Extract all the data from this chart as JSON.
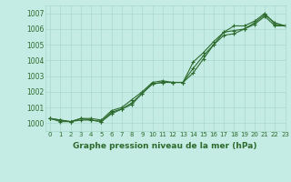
{
  "title": "Graphe pression niveau de la mer (hPa)",
  "background_color": "#c5ece4",
  "grid_color": "#a8d8cc",
  "line_color": "#2d6a2d",
  "xlim": [
    -0.5,
    23
  ],
  "ylim": [
    999.5,
    1007.5
  ],
  "yticks": [
    1000,
    1001,
    1002,
    1003,
    1004,
    1005,
    1006,
    1007
  ],
  "xticks": [
    0,
    1,
    2,
    3,
    4,
    5,
    6,
    7,
    8,
    9,
    10,
    11,
    12,
    13,
    14,
    15,
    16,
    17,
    18,
    19,
    20,
    21,
    22,
    23
  ],
  "series1": [
    1000.3,
    1000.1,
    1000.1,
    1000.3,
    1000.2,
    1000.1,
    1000.7,
    1000.9,
    1001.3,
    1001.9,
    1002.5,
    1002.6,
    1002.6,
    1002.6,
    1003.9,
    1004.5,
    1005.2,
    1005.8,
    1005.9,
    1006.0,
    1006.3,
    1006.8,
    1006.2,
    1006.2
  ],
  "series2": [
    1000.3,
    1000.2,
    1000.1,
    1000.3,
    1000.3,
    1000.2,
    1000.8,
    1001.0,
    1001.5,
    1002.0,
    1002.6,
    1002.7,
    1002.6,
    1002.6,
    1003.2,
    1004.1,
    1005.0,
    1005.6,
    1005.7,
    1006.0,
    1006.4,
    1006.9,
    1006.4,
    1006.2
  ],
  "series3": [
    1000.3,
    1000.2,
    1000.1,
    1000.2,
    1000.2,
    1000.1,
    1000.6,
    1000.9,
    1001.2,
    1001.9,
    1002.5,
    1002.6,
    1002.6,
    1002.6,
    1003.5,
    1004.3,
    1005.0,
    1005.8,
    1006.2,
    1006.2,
    1006.5,
    1007.0,
    1006.3,
    1006.2
  ],
  "ytick_fontsize": 5.5,
  "xtick_fontsize": 5.0,
  "title_fontsize": 6.5
}
